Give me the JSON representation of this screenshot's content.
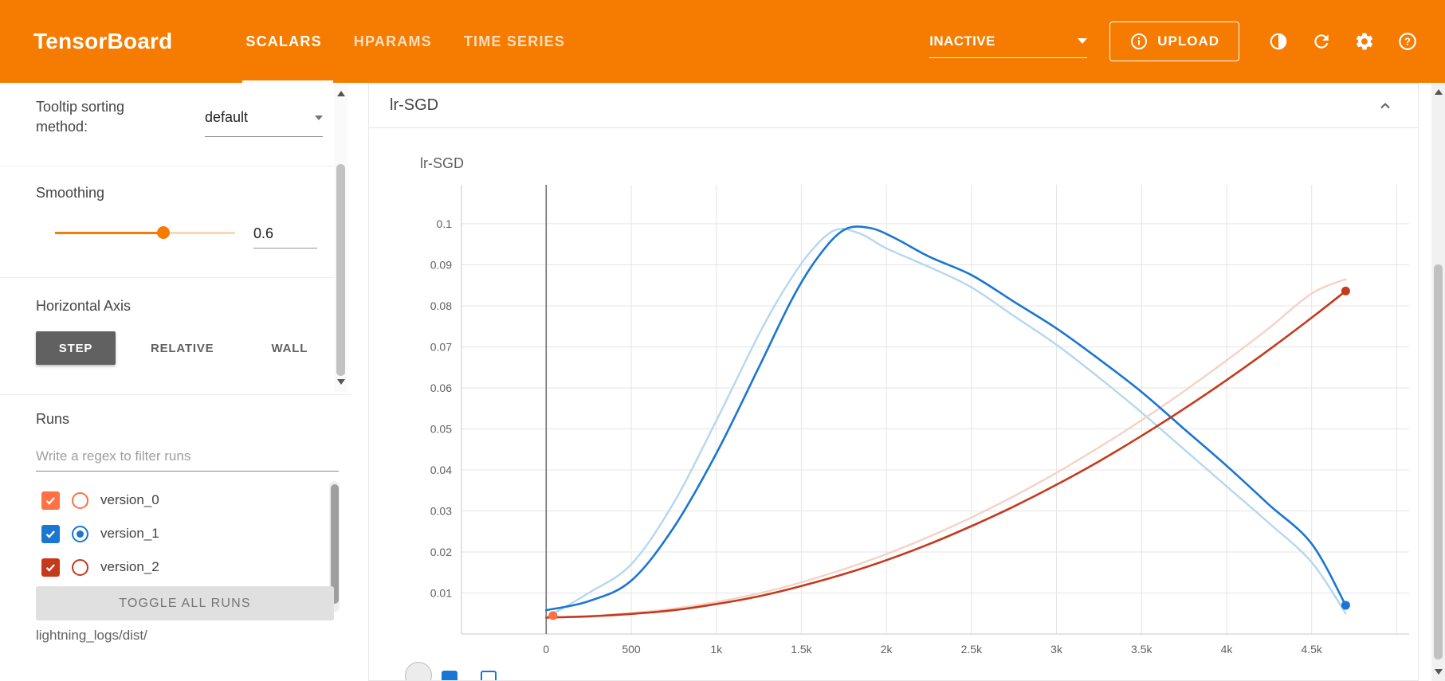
{
  "colors": {
    "header_bg": "#f57c00",
    "accent": "#f57c00"
  },
  "header": {
    "logo": "TensorBoard",
    "tabs": [
      {
        "label": "SCALARS",
        "active": true
      },
      {
        "label": "HPARAMS",
        "active": false
      },
      {
        "label": "TIME SERIES",
        "active": false
      }
    ],
    "status_dropdown": "INACTIVE",
    "upload_label": "UPLOAD"
  },
  "sidebar": {
    "tooltip_sorting": {
      "label": "Tooltip sorting method:",
      "value": "default"
    },
    "smoothing": {
      "label": "Smoothing",
      "value": "0.6"
    },
    "horizontal_axis": {
      "label": "Horizontal Axis",
      "options": [
        "STEP",
        "RELATIVE",
        "WALL"
      ],
      "selected": "STEP"
    },
    "runs": {
      "label": "Runs",
      "filter_placeholder": "Write a regex to filter runs",
      "items": [
        {
          "name": "version_0",
          "color": "#ff7043",
          "checked": true,
          "radio_selected": false
        },
        {
          "name": "version_1",
          "color": "#1976d2",
          "checked": true,
          "radio_selected": true
        },
        {
          "name": "version_2",
          "color": "#c5391c",
          "checked": true,
          "radio_selected": false
        }
      ],
      "toggle_all_label": "TOGGLE ALL RUNS",
      "log_dir": "lightning_logs/dist/"
    }
  },
  "main": {
    "card_title": "lr-SGD"
  },
  "icons": {
    "info-icon": "circled i",
    "brightness-icon": "half-filled circle",
    "refresh-icon": "circular arrow",
    "gear-icon": "cog",
    "help-icon": "circled ?",
    "chevron-up-icon": "^",
    "chevron-down-icon": "▾",
    "check-icon": "✓"
  },
  "chart_data": {
    "type": "line",
    "title": "lr-SGD",
    "xlabel": "step",
    "ylabel": "",
    "grid": true,
    "legend": "none",
    "xlim": [
      -498,
      5073
    ],
    "ylim": [
      0,
      0.1095
    ],
    "x_ticks": [
      [
        0,
        "0"
      ],
      [
        500,
        "500"
      ],
      [
        1000,
        "1k"
      ],
      [
        1500,
        "1.5k"
      ],
      [
        2000,
        "2k"
      ],
      [
        2500,
        "2.5k"
      ],
      [
        3000,
        "3k"
      ],
      [
        3500,
        "3.5k"
      ],
      [
        4000,
        "4k"
      ],
      [
        4500,
        "4.5k"
      ],
      [
        5000,
        ""
      ]
    ],
    "y_ticks": [
      [
        0.01,
        "0.01"
      ],
      [
        0.02,
        "0.02"
      ],
      [
        0.03,
        "0.03"
      ],
      [
        0.04,
        "0.04"
      ],
      [
        0.05,
        "0.05"
      ],
      [
        0.06,
        "0.06"
      ],
      [
        0.07,
        "0.07"
      ],
      [
        0.08,
        "0.08"
      ],
      [
        0.09,
        "0.09"
      ],
      [
        0.1,
        "0.1"
      ]
    ],
    "series": [
      {
        "name": "version_1 (raw)",
        "color": "#b5d7ee",
        "width": 2.4,
        "points": [
          [
            0,
            0.004
          ],
          [
            250,
            0.01
          ],
          [
            500,
            0.017
          ],
          [
            750,
            0.032
          ],
          [
            1000,
            0.052
          ],
          [
            1250,
            0.073
          ],
          [
            1400,
            0.084
          ],
          [
            1550,
            0.093
          ],
          [
            1700,
            0.0985
          ],
          [
            1850,
            0.0975
          ],
          [
            2000,
            0.094
          ],
          [
            2250,
            0.0895
          ],
          [
            2500,
            0.0845
          ],
          [
            2750,
            0.0775
          ],
          [
            3000,
            0.0705
          ],
          [
            3250,
            0.0625
          ],
          [
            3500,
            0.054
          ],
          [
            3750,
            0.045
          ],
          [
            4000,
            0.036
          ],
          [
            4250,
            0.027
          ],
          [
            4500,
            0.0175
          ],
          [
            4700,
            0.005
          ]
        ]
      },
      {
        "name": "version_2 (raw)",
        "color": "#f5d2c6",
        "width": 2.4,
        "points": [
          [
            0,
            0.004
          ],
          [
            250,
            0.0044
          ],
          [
            500,
            0.0051
          ],
          [
            750,
            0.0062
          ],
          [
            1000,
            0.0078
          ],
          [
            1250,
            0.0099
          ],
          [
            1500,
            0.0126
          ],
          [
            1750,
            0.0158
          ],
          [
            2000,
            0.0195
          ],
          [
            2250,
            0.0237
          ],
          [
            2500,
            0.0284
          ],
          [
            2750,
            0.0336
          ],
          [
            3000,
            0.0393
          ],
          [
            3250,
            0.0455
          ],
          [
            3500,
            0.0521
          ],
          [
            3750,
            0.0592
          ],
          [
            4000,
            0.0667
          ],
          [
            4250,
            0.0746
          ],
          [
            4500,
            0.083
          ],
          [
            4700,
            0.0865
          ]
        ]
      },
      {
        "name": "version_1",
        "color": "#1976d2",
        "width": 2.6,
        "points": [
          [
            0,
            0.0058
          ],
          [
            250,
            0.008
          ],
          [
            500,
            0.013
          ],
          [
            750,
            0.026
          ],
          [
            1000,
            0.044
          ],
          [
            1250,
            0.065
          ],
          [
            1450,
            0.082
          ],
          [
            1600,
            0.092
          ],
          [
            1750,
            0.0985
          ],
          [
            1900,
            0.099
          ],
          [
            2050,
            0.0965
          ],
          [
            2250,
            0.092
          ],
          [
            2500,
            0.0875
          ],
          [
            2750,
            0.081
          ],
          [
            3000,
            0.0745
          ],
          [
            3250,
            0.067
          ],
          [
            3500,
            0.059
          ],
          [
            3750,
            0.05
          ],
          [
            4000,
            0.041
          ],
          [
            4250,
            0.0315
          ],
          [
            4500,
            0.022
          ],
          [
            4700,
            0.007
          ]
        ]
      },
      {
        "name": "version_2",
        "color": "#c5391c",
        "width": 2.6,
        "points": [
          [
            0,
            0.004
          ],
          [
            250,
            0.0043
          ],
          [
            500,
            0.0049
          ],
          [
            750,
            0.0058
          ],
          [
            1000,
            0.0073
          ],
          [
            1250,
            0.0092
          ],
          [
            1500,
            0.0117
          ],
          [
            1750,
            0.0146
          ],
          [
            2000,
            0.018
          ],
          [
            2250,
            0.0219
          ],
          [
            2500,
            0.0263
          ],
          [
            2750,
            0.0311
          ],
          [
            3000,
            0.0364
          ],
          [
            3250,
            0.0421
          ],
          [
            3500,
            0.0483
          ],
          [
            3750,
            0.0549
          ],
          [
            4000,
            0.0619
          ],
          [
            4250,
            0.0693
          ],
          [
            4500,
            0.0771
          ],
          [
            4700,
            0.0836
          ]
        ]
      }
    ],
    "markers": [
      {
        "x": 40,
        "y": 0.0045,
        "color": "#ff7043",
        "run": "version_0"
      },
      {
        "x": 4700,
        "y": 0.0836,
        "color": "#c5391c",
        "run": "version_2"
      },
      {
        "x": 4700,
        "y": 0.007,
        "color": "#1976d2",
        "run": "version_1"
      }
    ]
  }
}
